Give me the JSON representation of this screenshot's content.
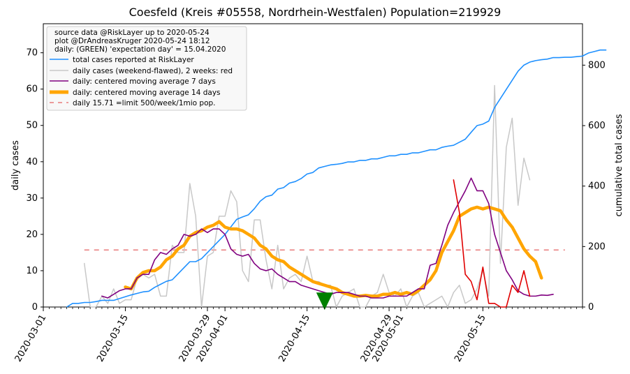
{
  "chart_data": {
    "type": "line",
    "title": "Coesfeld (Kreis #05558, Nordrhein-Westfalen) Population=219929",
    "ylabel_left": "daily cases",
    "ylabel_right": "cumulative total cases",
    "ylim_left": [
      0,
      78
    ],
    "ylim_right": [
      0,
      937
    ],
    "xlim": [
      "2020-03-01",
      "2020-06-01"
    ],
    "yticks_left": [
      0,
      10,
      20,
      30,
      40,
      50,
      60,
      70
    ],
    "yticks_right": [
      0,
      200,
      400,
      600,
      800
    ],
    "xticks": [
      "2020-03-01",
      "2020-03-15",
      "2020-03-29",
      "2020-04-01",
      "2020-04-15",
      "2020-04-29",
      "2020-05-01",
      "2020-05-15"
    ],
    "colors": {
      "total": "#1e90ff",
      "daily": "#c8c8c8",
      "recent": "#e00000",
      "ma7": "#800080",
      "ma14": "#ffa500",
      "limit": "#e87a7a",
      "expectation": "#008000",
      "left_label": "#800080",
      "right_label": "#1e90ff"
    },
    "legend": {
      "placement": "top-left",
      "header": [
        "source data @RiskLayer up to 2020-05-24",
        "plot @DrAndreasKruger 2020-05-24 18:12",
        "daily: (GREEN) 'expectation day' = 15.04.2020"
      ],
      "entries": [
        "total cases reported at RiskLayer",
        "daily cases (weekend-flawed), 2 weeks: red",
        "daily: centered moving average 7 days",
        "daily: centered moving average 14 days",
        "daily 15.71 =limit 500/week/1mio pop."
      ]
    },
    "limit_line": {
      "value": 15.71,
      "start": "2020-03-08",
      "end": "2020-05-29"
    },
    "expectation_marker": {
      "date": "2020-04-18",
      "value": 1.5
    },
    "cumulative": {
      "start": "2020-03-05",
      "values": [
        0,
        12,
        12,
        15,
        15,
        18,
        22,
        22,
        22,
        28,
        34,
        40,
        45,
        50,
        52,
        65,
        75,
        85,
        90,
        110,
        130,
        150,
        150,
        160,
        180,
        200,
        220,
        240,
        265,
        290,
        298,
        305,
        325,
        350,
        365,
        370,
        390,
        395,
        410,
        415,
        425,
        440,
        445,
        460,
        465,
        470,
        472,
        475,
        480,
        480,
        485,
        485,
        490,
        490,
        495,
        500,
        500,
        505,
        505,
        510,
        510,
        515,
        520,
        520,
        528,
        532,
        535,
        545,
        555,
        578,
        600,
        605,
        615,
        660,
        690,
        720,
        750,
        780,
        800,
        810,
        815,
        818,
        820,
        825,
        825,
        826,
        826,
        828,
        830,
        840,
        845,
        850,
        850
      ]
    },
    "daily": {
      "start": "2020-03-08",
      "values": [
        12,
        0,
        0,
        3,
        1,
        5,
        1,
        2,
        2,
        8,
        9,
        8,
        9,
        3,
        3,
        17,
        15,
        15,
        34,
        25,
        0,
        14,
        15,
        25,
        25,
        32,
        29,
        10,
        7,
        24,
        24,
        13,
        5,
        17,
        5,
        8,
        9,
        7,
        14,
        7,
        7,
        6,
        6,
        0,
        3,
        4,
        5,
        0,
        0,
        3,
        4,
        9,
        4,
        3,
        5,
        0,
        3,
        4,
        0,
        1,
        2,
        3,
        0,
        4,
        6,
        1,
        2,
        5,
        10,
        3,
        61,
        12,
        44,
        52,
        28,
        41,
        35
      ]
    },
    "recent_daily": {
      "start": "2020-05-10",
      "values": [
        35,
        26,
        9,
        7,
        2,
        11,
        1,
        1,
        0,
        0,
        6,
        4,
        10,
        3
      ]
    },
    "ma7": {
      "start": "2020-03-11",
      "values": [
        3,
        2.5,
        3.5,
        4.5,
        5,
        5,
        8,
        9,
        9,
        13,
        15,
        14.5,
        16,
        17,
        20,
        19.5,
        20,
        21.5,
        20.5,
        21.5,
        21.5,
        20,
        16,
        14.5,
        14,
        14.5,
        12,
        10.5,
        10,
        10.5,
        9,
        8,
        7,
        7,
        6,
        5.5,
        5,
        4.5,
        4,
        3.5,
        4,
        4,
        4,
        3.5,
        3,
        3,
        2.5,
        2.5,
        2.5,
        3,
        3,
        3,
        3,
        4,
        5,
        5,
        11.5,
        12,
        17,
        22.5,
        26,
        29,
        32,
        35.5,
        32,
        32,
        28.5,
        20,
        15,
        10,
        7.5,
        4.5,
        3.5,
        3,
        3,
        3.3,
        3.2,
        3.5
      ]
    },
    "ma14": {
      "start": "2020-03-15",
      "values": [
        5.5,
        5,
        8,
        9.5,
        10,
        10,
        11,
        13,
        14,
        16,
        17,
        19.5,
        20.5,
        21,
        22,
        22.5,
        23.5,
        22,
        21.5,
        21.5,
        21,
        20,
        19,
        17,
        16,
        14,
        13,
        12.5,
        11,
        10,
        9,
        8,
        7,
        6.5,
        6,
        5.5,
        5,
        4,
        3.5,
        3,
        3,
        3.2,
        3,
        3,
        3.5,
        3.5,
        4,
        3.5,
        4,
        3.5,
        4.5,
        6,
        7.5,
        10,
        15,
        18,
        21,
        25,
        26,
        27,
        27.5,
        27,
        27.5,
        27,
        26.5,
        24,
        22,
        19,
        16,
        14,
        12.5,
        8
      ]
    }
  }
}
